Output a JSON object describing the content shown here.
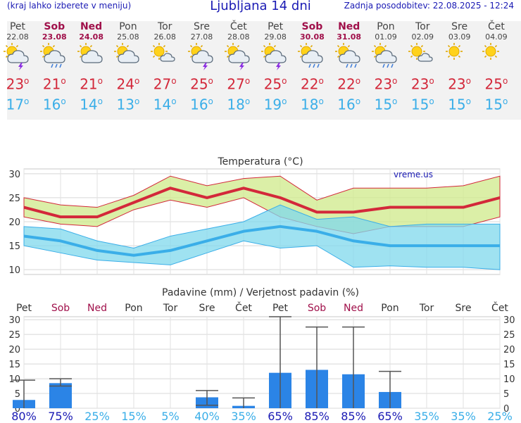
{
  "header": {
    "menu_hint": "(kraj lahko izberete v meniju)",
    "title": "Ljubljana 14 dni",
    "updated": "Zadnja posodobitev: 22.08.2025 - 12:24"
  },
  "colors": {
    "max": "#d3283a",
    "min": "#3aaee8",
    "bar": "#2b84e6",
    "weekend": "#a0104a"
  },
  "forecast": [
    {
      "day": "Pet",
      "date": "22.08",
      "icon": "sun-cloud-thunder-icon",
      "max": "23",
      "min": "17",
      "weekend": false
    },
    {
      "day": "Sob",
      "date": "23.08",
      "icon": "sun-cloud-rain-icon",
      "max": "21",
      "min": "16",
      "weekend": true
    },
    {
      "day": "Ned",
      "date": "24.08",
      "icon": "sun-cloud-icon",
      "max": "21",
      "min": "14",
      "weekend": true
    },
    {
      "day": "Pon",
      "date": "25.08",
      "icon": "sun-cloud-icon",
      "max": "24",
      "min": "13",
      "weekend": false
    },
    {
      "day": "Tor",
      "date": "26.08",
      "icon": "sun-small-cloud-icon",
      "max": "27",
      "min": "14",
      "weekend": false
    },
    {
      "day": "Sre",
      "date": "27.08",
      "icon": "sun-cloud-thunder-icon",
      "max": "25",
      "min": "16",
      "weekend": false
    },
    {
      "day": "Čet",
      "date": "28.08",
      "icon": "sun-cloud-thunder-icon",
      "max": "27",
      "min": "18",
      "weekend": false
    },
    {
      "day": "Pet",
      "date": "29.08",
      "icon": "sun-cloud-thunder-icon",
      "max": "25",
      "min": "19",
      "weekend": false
    },
    {
      "day": "Sob",
      "date": "30.08",
      "icon": "sun-cloud-rain-icon",
      "max": "22",
      "min": "18",
      "weekend": true
    },
    {
      "day": "Ned",
      "date": "31.08",
      "icon": "sun-cloud-rain-icon",
      "max": "22",
      "min": "16",
      "weekend": true
    },
    {
      "day": "Pon",
      "date": "01.09",
      "icon": "sun-cloud-rain-icon",
      "max": "23",
      "min": "15",
      "weekend": false
    },
    {
      "day": "Tor",
      "date": "02.09",
      "icon": "sun-small-cloud-icon",
      "max": "23",
      "min": "15",
      "weekend": false
    },
    {
      "day": "Sre",
      "date": "03.09",
      "icon": "sun-icon",
      "max": "23",
      "min": "15",
      "weekend": false
    },
    {
      "day": "Čet",
      "date": "04.09",
      "icon": "sun-icon",
      "max": "25",
      "min": "15",
      "weekend": false
    }
  ],
  "chart_data": [
    {
      "type": "line",
      "title": "Temperatura (°C)",
      "watermark": "vreme.us",
      "x": [
        "Pet",
        "Sob",
        "Ned",
        "Pon",
        "Tor",
        "Sre",
        "Čet",
        "Pet",
        "Sob",
        "Ned",
        "Pon",
        "Tor",
        "Sre",
        "Čet"
      ],
      "yticks": [
        10,
        15,
        20,
        25,
        30
      ],
      "ylim": [
        9,
        31
      ],
      "series": [
        {
          "values": [
            23,
            21,
            21,
            24,
            27,
            25,
            27,
            25,
            22,
            22,
            23,
            23,
            23,
            25
          ],
          "band_high": [
            25,
            23.5,
            23,
            25.5,
            29.5,
            27.5,
            29,
            29.5,
            24.5,
            27,
            27,
            27,
            27.5,
            29.5
          ],
          "band_low": [
            21,
            19.5,
            19,
            22.5,
            24.5,
            23,
            25,
            21,
            19,
            17.5,
            19,
            19,
            19,
            21
          ]
        },
        {
          "values": [
            17,
            16,
            14,
            13,
            14,
            16,
            18,
            19,
            18,
            16,
            15,
            15,
            15,
            15
          ],
          "band_high": [
            19,
            18.5,
            16,
            14.5,
            17,
            18.5,
            20,
            23.5,
            20.5,
            21,
            19,
            19.5,
            19.5,
            19.5
          ],
          "band_low": [
            15,
            13.5,
            12,
            11.5,
            11,
            13.5,
            16,
            14.5,
            15,
            10.5,
            10.8,
            10.5,
            10.5,
            10
          ]
        }
      ],
      "grid": true
    },
    {
      "type": "bar",
      "title": "Padavine (mm) / Verjetnost padavin (%)",
      "categories": [
        "Pet",
        "Sob",
        "Ned",
        "Pon",
        "Tor",
        "Sre",
        "Čet",
        "Pet",
        "Sob",
        "Ned",
        "Pon",
        "Tor",
        "Sre",
        "Čet"
      ],
      "values": [
        2.8,
        8.5,
        0,
        0,
        0,
        3.7,
        0.8,
        12,
        13,
        11.5,
        5.5,
        0,
        0,
        0
      ],
      "error_high": [
        9.5,
        10,
        0,
        0,
        0,
        6,
        3.5,
        31,
        27.5,
        27.5,
        12.5,
        0,
        0,
        0
      ],
      "error_low": [
        0,
        7.5,
        0,
        0,
        0,
        1,
        0,
        0,
        0,
        0,
        0,
        0,
        0,
        0
      ],
      "probability": [
        "80%",
        "75%",
        "25%",
        "15%",
        "5%",
        "40%",
        "35%",
        "65%",
        "85%",
        "85%",
        "65%",
        "35%",
        "35%",
        "25%"
      ],
      "yticks": [
        0,
        5,
        10,
        15,
        20,
        25,
        30
      ],
      "ylim": [
        0,
        31
      ],
      "grid": true
    }
  ]
}
